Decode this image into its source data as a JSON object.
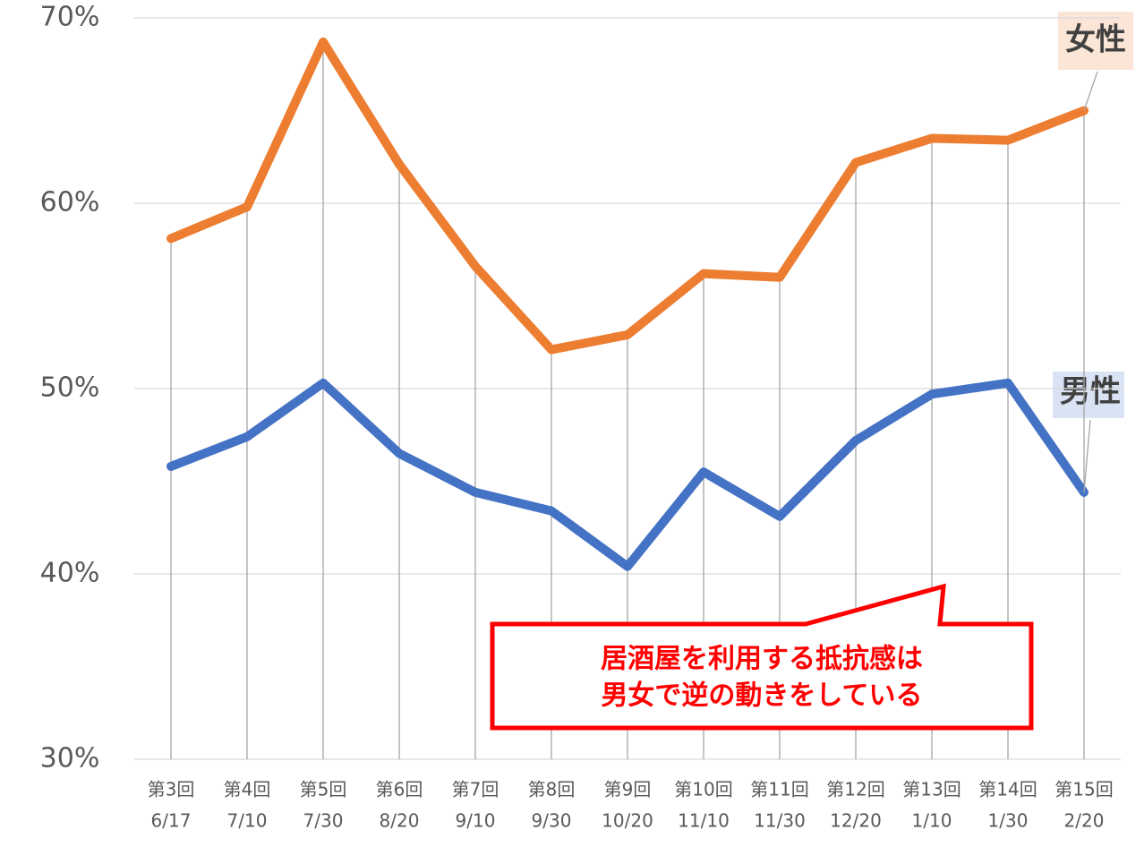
{
  "chart_data": {
    "type": "line",
    "categories": [
      [
        "第3回",
        "6/17"
      ],
      [
        "第4回",
        "7/10"
      ],
      [
        "第5回",
        "7/30"
      ],
      [
        "第6回",
        "8/20"
      ],
      [
        "第7回",
        "9/10"
      ],
      [
        "第8回",
        "9/30"
      ],
      [
        "第9回",
        "10/20"
      ],
      [
        "第10回",
        "11/10"
      ],
      [
        "第11回",
        "11/30"
      ],
      [
        "第12回",
        "12/20"
      ],
      [
        "第13回",
        "1/10"
      ],
      [
        "第14回",
        "1/30"
      ],
      [
        "第15回",
        "2/20"
      ]
    ],
    "series": [
      {
        "name": "女性",
        "color": "#ed7d31",
        "values": [
          58.1,
          59.8,
          68.7,
          62.1,
          56.6,
          52.1,
          52.9,
          56.2,
          56.0,
          62.2,
          63.5,
          63.4,
          65.0
        ]
      },
      {
        "name": "男性",
        "color": "#4472c4",
        "values": [
          45.8,
          47.4,
          50.3,
          46.5,
          44.4,
          43.4,
          40.4,
          45.5,
          43.1,
          47.2,
          49.7,
          50.3,
          44.4
        ]
      }
    ],
    "ylim": [
      30,
      70
    ],
    "yticks": [
      {
        "value": 30,
        "label": "30%"
      },
      {
        "value": 40,
        "label": "40%"
      },
      {
        "value": 50,
        "label": "50%"
      },
      {
        "value": 60,
        "label": "60%"
      },
      {
        "value": 70,
        "label": "70%"
      }
    ],
    "grid": true,
    "drop_lines": true,
    "annotation": [
      "居酒屋を利用する抵抗感は",
      "男女で逆の動きをしている"
    ]
  }
}
